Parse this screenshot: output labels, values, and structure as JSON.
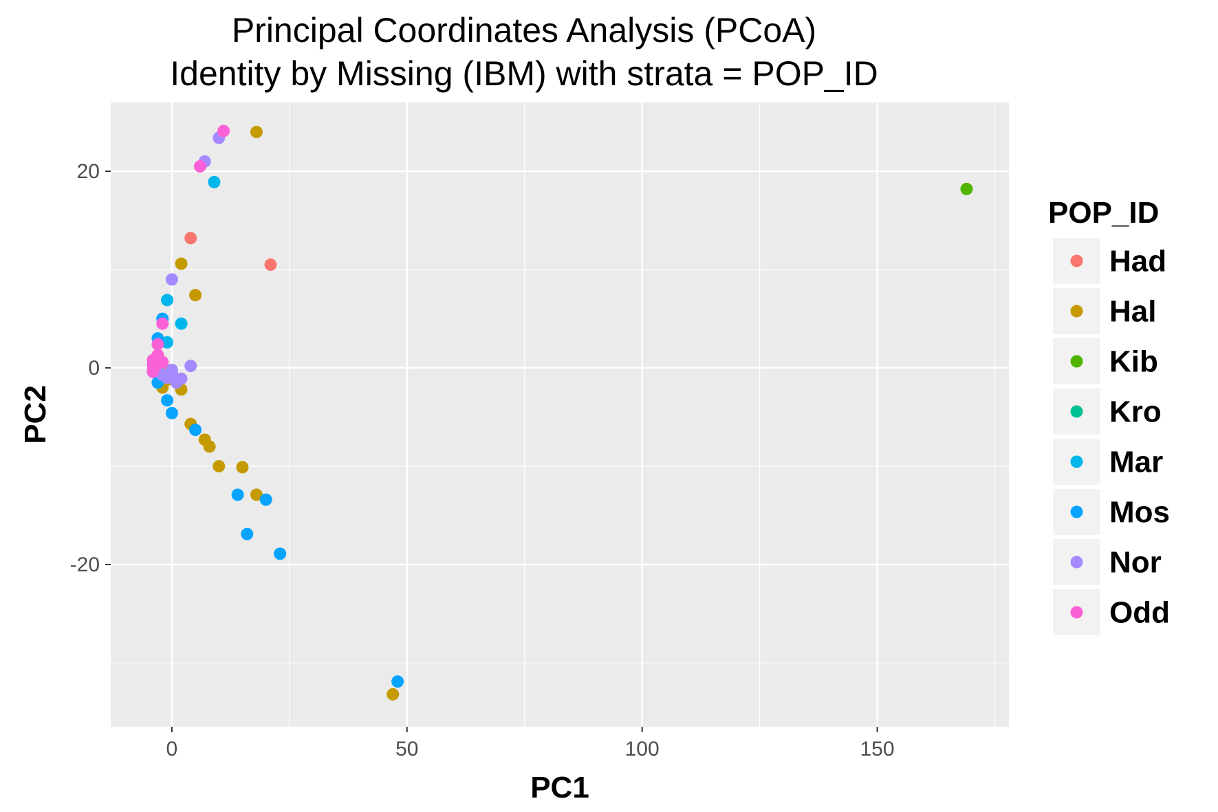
{
  "chart_data": {
    "type": "scatter",
    "title": "Principal Coordinates Analysis (PCoA)",
    "subtitle": "Identity by Missing (IBM) with strata = POP_ID",
    "xlabel": "PC1",
    "ylabel": "PC2",
    "xlim": [
      -13,
      178
    ],
    "ylim": [
      -36.5,
      27
    ],
    "x_ticks": [
      0,
      50,
      100,
      150
    ],
    "x_tick_labels": [
      "0",
      "50",
      "100",
      "150"
    ],
    "x_minor_ticks": [
      -25,
      25,
      75,
      125,
      175
    ],
    "y_ticks": [
      -20,
      0,
      20
    ],
    "y_tick_labels": [
      "-20",
      "0",
      "20"
    ],
    "y_minor_ticks": [
      -30,
      -10,
      10
    ],
    "grid": true,
    "legend_title": "POP_ID",
    "legend_position": "right",
    "series": [
      {
        "name": "Had",
        "color": "#F8766D",
        "points": [
          [
            4,
            13.2
          ],
          [
            21,
            10.5
          ],
          [
            -3,
            -0.5
          ],
          [
            -2,
            0.3
          ]
        ]
      },
      {
        "name": "Hal",
        "color": "#C49A00",
        "points": [
          [
            18,
            24
          ],
          [
            2,
            10.6
          ],
          [
            5,
            7.4
          ],
          [
            2,
            -2.2
          ],
          [
            -2,
            -2
          ],
          [
            4,
            -5.7
          ],
          [
            7,
            -7.3
          ],
          [
            8,
            -8
          ],
          [
            10,
            -10
          ],
          [
            15,
            -10.1
          ],
          [
            18,
            -12.9
          ],
          [
            47,
            -33.2
          ],
          [
            -1,
            -1.2
          ]
        ]
      },
      {
        "name": "Kib",
        "color": "#53B400",
        "points": [
          [
            169,
            18.2
          ]
        ]
      },
      {
        "name": "Kro",
        "color": "#00C094",
        "points": [
          [
            -3,
            -0.3
          ]
        ]
      },
      {
        "name": "Mar",
        "color": "#00B6EB",
        "points": [
          [
            9,
            18.9
          ],
          [
            -1,
            6.9
          ],
          [
            2,
            4.5
          ],
          [
            -1,
            2.6
          ],
          [
            -3,
            0.1
          ]
        ]
      },
      {
        "name": "Mos",
        "color": "#06A4FF",
        "points": [
          [
            -2,
            5
          ],
          [
            -3,
            3
          ],
          [
            -3,
            -1.5
          ],
          [
            -1,
            -3.3
          ],
          [
            0,
            -4.6
          ],
          [
            5,
            -6.3
          ],
          [
            14,
            -12.9
          ],
          [
            20,
            -13.4
          ],
          [
            16,
            -16.9
          ],
          [
            23,
            -18.9
          ],
          [
            48,
            -31.9
          ],
          [
            -4,
            -0.4
          ]
        ]
      },
      {
        "name": "Nor",
        "color": "#A58AFF",
        "points": [
          [
            10,
            23.4
          ],
          [
            7,
            21
          ],
          [
            0,
            9
          ],
          [
            4,
            0.2
          ],
          [
            2,
            -1.1
          ],
          [
            0,
            -0.5
          ],
          [
            -1,
            -1
          ],
          [
            1,
            -1.5
          ],
          [
            0,
            -0.2
          ],
          [
            -2,
            -0.7
          ]
        ]
      },
      {
        "name": "Odd",
        "color": "#FB61D7",
        "points": [
          [
            11,
            24.1
          ],
          [
            6,
            20.5
          ],
          [
            -2,
            4.5
          ],
          [
            -3,
            2.4
          ],
          [
            -3,
            1.3
          ],
          [
            -4,
            0.8
          ],
          [
            -4,
            0.3
          ],
          [
            -4,
            -0.1
          ],
          [
            -3,
            0.4
          ],
          [
            -2,
            0.6
          ],
          [
            -4,
            -0.4
          ]
        ]
      }
    ]
  }
}
